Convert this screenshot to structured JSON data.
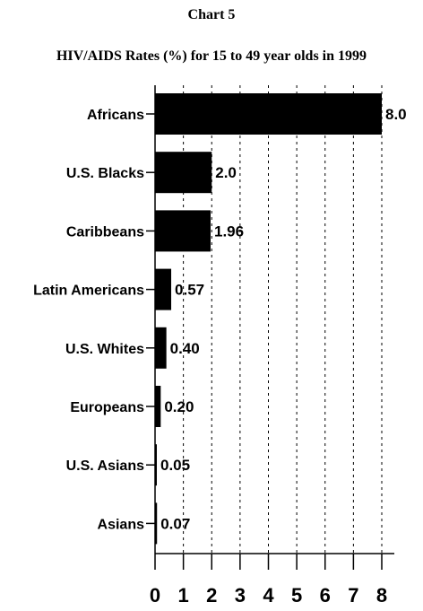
{
  "header": {
    "chart_number": "Chart 5",
    "title": "HIV/AIDS Rates (%) for 15 to 49 year olds in 1999"
  },
  "colors": {
    "bar": "#000000",
    "grid": "#000000",
    "background": "#ffffff"
  },
  "chart_data": {
    "type": "bar",
    "orientation": "horizontal",
    "title": "HIV/AIDS Rates (%) for 15 to 49 year olds in 1999",
    "categories": [
      "Africans",
      "U.S. Blacks",
      "Caribbeans",
      "Latin Americans",
      "U.S. Whites",
      "Europeans",
      "U.S. Asians",
      "Asians"
    ],
    "values": [
      8.0,
      2.0,
      1.96,
      0.57,
      0.4,
      0.2,
      0.05,
      0.07
    ],
    "value_labels": [
      "8.0",
      "2.0",
      "1.96",
      "0.57",
      "0.40",
      "0.20",
      "0.05",
      "0.07"
    ],
    "xlabel": "",
    "ylabel": "",
    "xlim": [
      0,
      8
    ],
    "x_ticks": [
      "0",
      "1",
      "2",
      "3",
      "4",
      "5",
      "6",
      "7",
      "8"
    ],
    "grid": "vertical dotted",
    "legend": "none"
  }
}
